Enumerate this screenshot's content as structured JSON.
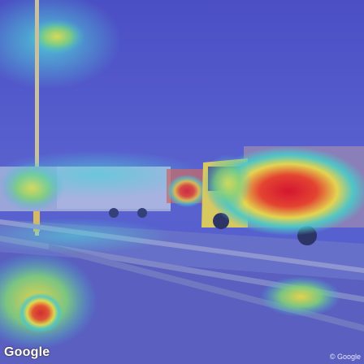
{
  "image": {
    "logo_text": "Google",
    "credit_text": "© Google"
  },
  "colors": {
    "heat_low": "#3a46c9",
    "heat_mid": "#3fb8d8",
    "heat_warm": "#e8e84a",
    "heat_high": "#e0222a"
  }
}
